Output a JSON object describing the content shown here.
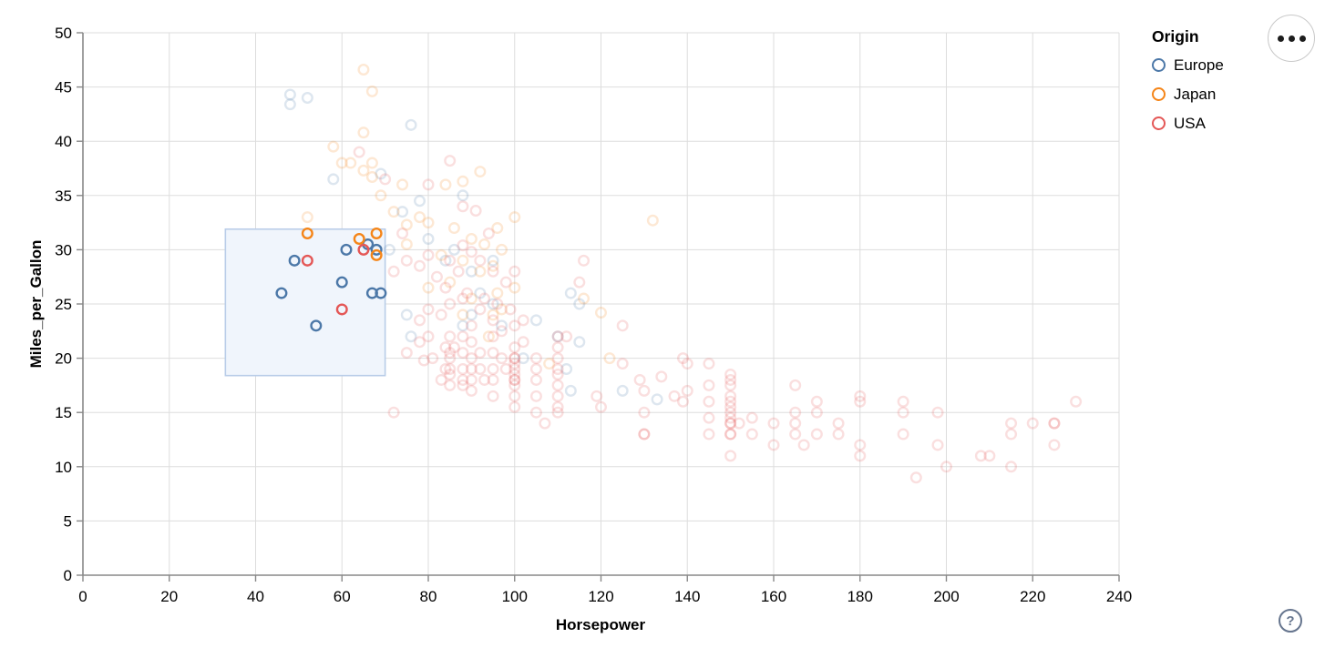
{
  "chart_data": {
    "type": "scatter",
    "title": "",
    "xlabel": "Horsepower",
    "ylabel": "Miles_per_Gallon",
    "xlim": [
      0,
      240
    ],
    "ylim": [
      0,
      50
    ],
    "x_ticks": [
      0,
      20,
      40,
      60,
      80,
      100,
      120,
      140,
      160,
      180,
      200,
      220,
      240
    ],
    "y_ticks": [
      0,
      5,
      10,
      15,
      20,
      25,
      30,
      35,
      40,
      45,
      50
    ],
    "grid": true,
    "point_style": {
      "shape": "open-circle",
      "radius": 5.3,
      "stroke_width": 2.4,
      "unselected_opacity": 0.19,
      "selected_opacity": 1
    },
    "brush": {
      "hp_min": 33,
      "hp_max": 70,
      "mpg_min": 18.4,
      "mpg_max": 31.9,
      "fill": "#f0f5fc",
      "stroke": "#b9cde8"
    },
    "legend": {
      "title": "Origin",
      "position": "top-right",
      "entries": [
        {
          "label": "Europe",
          "color": "#4c78a8"
        },
        {
          "label": "Japan",
          "color": "#f58518"
        },
        {
          "label": "USA",
          "color": "#e45756"
        }
      ]
    },
    "series": [
      {
        "name": "Europe",
        "color": "#4c78a8",
        "selected": [
          [
            46,
            26
          ],
          [
            49,
            29
          ],
          [
            54,
            23
          ],
          [
            60,
            27
          ],
          [
            61,
            30
          ],
          [
            66,
            30.5
          ],
          [
            68,
            30
          ],
          [
            67,
            26
          ],
          [
            69,
            26
          ]
        ],
        "unselected": [
          [
            48,
            44.3
          ],
          [
            52,
            44
          ],
          [
            48,
            43.4
          ],
          [
            76,
            41.5
          ],
          [
            69,
            37
          ],
          [
            58,
            36.5
          ],
          [
            88,
            35
          ],
          [
            78,
            34.5
          ],
          [
            74,
            33.5
          ],
          [
            71,
            30
          ],
          [
            80,
            31
          ],
          [
            86,
            30
          ],
          [
            84,
            29
          ],
          [
            90,
            28
          ],
          [
            95,
            29
          ],
          [
            92,
            26
          ],
          [
            90,
            24
          ],
          [
            95,
            25
          ],
          [
            97,
            23
          ],
          [
            105,
            23.5
          ],
          [
            113,
            26
          ],
          [
            115,
            25
          ],
          [
            115,
            21.5
          ],
          [
            102,
            20
          ],
          [
            112,
            19
          ],
          [
            113,
            17
          ],
          [
            125,
            17
          ],
          [
            133,
            16.2
          ],
          [
            75,
            24
          ],
          [
            76,
            22
          ],
          [
            88,
            23
          ],
          [
            110,
            22
          ]
        ]
      },
      {
        "name": "Japan",
        "color": "#f58518",
        "selected": [
          [
            52,
            31.5
          ],
          [
            64,
            31
          ],
          [
            68,
            31.5
          ],
          [
            68,
            29.5
          ]
        ],
        "unselected": [
          [
            65,
            46.6
          ],
          [
            67,
            44.6
          ],
          [
            65,
            40.8
          ],
          [
            58,
            39.5
          ],
          [
            60,
            38
          ],
          [
            62,
            38
          ],
          [
            67,
            38
          ],
          [
            65,
            37.3
          ],
          [
            67,
            36.7
          ],
          [
            69,
            35
          ],
          [
            74,
            36
          ],
          [
            84,
            36
          ],
          [
            88,
            36.3
          ],
          [
            92,
            37.2
          ],
          [
            52,
            33
          ],
          [
            75,
            32.3
          ],
          [
            72,
            33.5
          ],
          [
            78,
            33
          ],
          [
            80,
            32.5
          ],
          [
            86,
            32
          ],
          [
            90,
            31
          ],
          [
            93,
            30.5
          ],
          [
            97,
            30
          ],
          [
            96,
            32
          ],
          [
            100,
            33
          ],
          [
            132,
            32.7
          ],
          [
            75,
            30.5
          ],
          [
            83,
            29.5
          ],
          [
            88,
            29
          ],
          [
            95,
            28.5
          ],
          [
            92,
            28
          ],
          [
            85,
            27
          ],
          [
            80,
            26.5
          ],
          [
            96,
            26
          ],
          [
            100,
            26.5
          ],
          [
            90,
            25.5
          ],
          [
            88,
            24
          ],
          [
            97,
            24.5
          ],
          [
            95,
            24
          ],
          [
            94,
            22
          ],
          [
            108,
            19.5
          ],
          [
            122,
            20
          ],
          [
            120,
            24.2
          ],
          [
            116,
            25.5
          ]
        ]
      },
      {
        "name": "USA",
        "color": "#e45756",
        "selected": [
          [
            52,
            29
          ],
          [
            60,
            24.5
          ],
          [
            65,
            30
          ]
        ],
        "unselected": [
          [
            64,
            39
          ],
          [
            85,
            38.2
          ],
          [
            80,
            36
          ],
          [
            70,
            36.5
          ],
          [
            88,
            34
          ],
          [
            91,
            33.6
          ],
          [
            94,
            31.5
          ],
          [
            74,
            31.5
          ],
          [
            72,
            28
          ],
          [
            75,
            29
          ],
          [
            78,
            28.5
          ],
          [
            80,
            29.5
          ],
          [
            82,
            27.5
          ],
          [
            85,
            29
          ],
          [
            87,
            28
          ],
          [
            88,
            30.4
          ],
          [
            90,
            29.8
          ],
          [
            92,
            29
          ],
          [
            95,
            28
          ],
          [
            98,
            27
          ],
          [
            100,
            28
          ],
          [
            84,
            26.5
          ],
          [
            89,
            26
          ],
          [
            93,
            25.5
          ],
          [
            96,
            25
          ],
          [
            99,
            24.5
          ],
          [
            88,
            25.5
          ],
          [
            85,
            25
          ],
          [
            80,
            24.5
          ],
          [
            78,
            23.5
          ],
          [
            83,
            24
          ],
          [
            90,
            23
          ],
          [
            95,
            23.5
          ],
          [
            100,
            23
          ],
          [
            102,
            23.5
          ],
          [
            97,
            22.5
          ],
          [
            92,
            24.5
          ],
          [
            75,
            20.5
          ],
          [
            78,
            21.5
          ],
          [
            79,
            19.8
          ],
          [
            80,
            22
          ],
          [
            81,
            20
          ],
          [
            83,
            18
          ],
          [
            84,
            21
          ],
          [
            84,
            19
          ],
          [
            85,
            22
          ],
          [
            85,
            20.5
          ],
          [
            85,
            20
          ],
          [
            85,
            19
          ],
          [
            85,
            18.5
          ],
          [
            85,
            17.5
          ],
          [
            86,
            21
          ],
          [
            88,
            22
          ],
          [
            88,
            20.5
          ],
          [
            88,
            19
          ],
          [
            88,
            18
          ],
          [
            88,
            17.5
          ],
          [
            90,
            21.5
          ],
          [
            90,
            20
          ],
          [
            90,
            19
          ],
          [
            90,
            18
          ],
          [
            90,
            17
          ],
          [
            92,
            20.5
          ],
          [
            92,
            19
          ],
          [
            93,
            18
          ],
          [
            95,
            22
          ],
          [
            95,
            20.5
          ],
          [
            95,
            19
          ],
          [
            95,
            18
          ],
          [
            95,
            16.5
          ],
          [
            97,
            20
          ],
          [
            98,
            19
          ],
          [
            100,
            21
          ],
          [
            100,
            20
          ],
          [
            100,
            20
          ],
          [
            100,
            19.5
          ],
          [
            100,
            19
          ],
          [
            100,
            18.5
          ],
          [
            100,
            18
          ],
          [
            100,
            18
          ],
          [
            100,
            17.5
          ],
          [
            100,
            16.5
          ],
          [
            100,
            15.5
          ],
          [
            102,
            21.5
          ],
          [
            105,
            20
          ],
          [
            105,
            19
          ],
          [
            105,
            18
          ],
          [
            105,
            16.5
          ],
          [
            105,
            15
          ],
          [
            107,
            14
          ],
          [
            110,
            22
          ],
          [
            110,
            21
          ],
          [
            110,
            20
          ],
          [
            110,
            19
          ],
          [
            110,
            18.5
          ],
          [
            110,
            17.5
          ],
          [
            110,
            16.5
          ],
          [
            110,
            15.5
          ],
          [
            110,
            15
          ],
          [
            112,
            22
          ],
          [
            72,
            15
          ],
          [
            115,
            27
          ],
          [
            116,
            29
          ],
          [
            119,
            16.5
          ],
          [
            120,
            15.5
          ],
          [
            125,
            19.5
          ],
          [
            125,
            23
          ],
          [
            129,
            18
          ],
          [
            130,
            17
          ],
          [
            130,
            15
          ],
          [
            130,
            13
          ],
          [
            130,
            13
          ],
          [
            134,
            18.3
          ],
          [
            137,
            16.5
          ],
          [
            139,
            16
          ],
          [
            139,
            20
          ],
          [
            140,
            19.5
          ],
          [
            140,
            17
          ],
          [
            145,
            19.5
          ],
          [
            145,
            17.5
          ],
          [
            145,
            16
          ],
          [
            145,
            14.5
          ],
          [
            145,
            13
          ],
          [
            150,
            18.5
          ],
          [
            150,
            18
          ],
          [
            150,
            17.5
          ],
          [
            150,
            16.5
          ],
          [
            150,
            16
          ],
          [
            150,
            15.5
          ],
          [
            150,
            15
          ],
          [
            150,
            14.5
          ],
          [
            150,
            14
          ],
          [
            150,
            14
          ],
          [
            150,
            13
          ],
          [
            150,
            13
          ],
          [
            150,
            11
          ],
          [
            152,
            14
          ],
          [
            155,
            14.5
          ],
          [
            155,
            13
          ],
          [
            160,
            14
          ],
          [
            160,
            12
          ],
          [
            165,
            17.5
          ],
          [
            165,
            15
          ],
          [
            165,
            14
          ],
          [
            165,
            13
          ],
          [
            167,
            12
          ],
          [
            170,
            16
          ],
          [
            170,
            15
          ],
          [
            170,
            13
          ],
          [
            175,
            14
          ],
          [
            175,
            13
          ],
          [
            180,
            16.5
          ],
          [
            180,
            16
          ],
          [
            180,
            12
          ],
          [
            180,
            11
          ],
          [
            190,
            16
          ],
          [
            190,
            15
          ],
          [
            190,
            13
          ],
          [
            193,
            9
          ],
          [
            198,
            15
          ],
          [
            198,
            12
          ],
          [
            200,
            10
          ],
          [
            208,
            11
          ],
          [
            210,
            11
          ],
          [
            215,
            14
          ],
          [
            215,
            13
          ],
          [
            215,
            10
          ],
          [
            220,
            14
          ],
          [
            225,
            14
          ],
          [
            225,
            14
          ],
          [
            225,
            12
          ],
          [
            230,
            16
          ]
        ]
      }
    ],
    "axis_style": {
      "grid_color": "#dddddd",
      "domain_color": "#888888",
      "tick_color": "#888888",
      "label_color": "#000000"
    }
  },
  "controls": {
    "menu_icon": "more-options",
    "help_icon": "?"
  }
}
